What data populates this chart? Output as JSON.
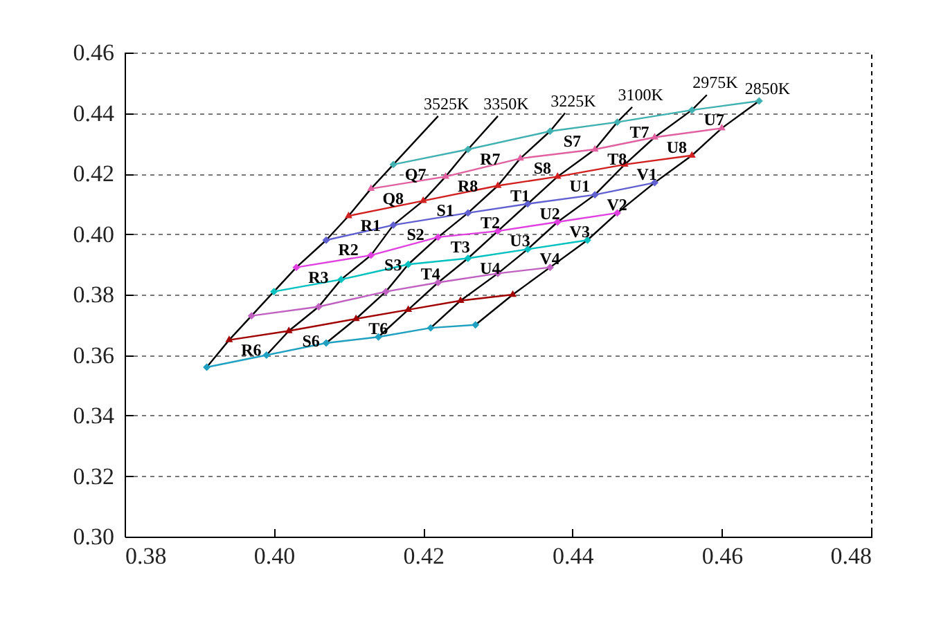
{
  "chart_data": {
    "type": "line",
    "xlim": [
      0.38,
      0.48
    ],
    "ylim": [
      0.3,
      0.46
    ],
    "xticks": [
      0.38,
      {
        "value": 0.4,
        "label": "0.40"
      },
      0.42,
      0.44,
      0.46,
      0.48
    ],
    "yticks": [
      {
        "value": 0.3,
        "label": "0.30"
      },
      0.32,
      0.34,
      0.36,
      0.38,
      {
        "value": 0.4,
        "label": "0.40"
      },
      0.42,
      0.44,
      0.46
    ],
    "grid": "y",
    "series": [
      {
        "name": "3525K",
        "color": "#000000",
        "marker": "none",
        "x": [
          0.391,
          0.394,
          0.397,
          0.4,
          0.403,
          0.407,
          0.41,
          0.413,
          0.416,
          0.422
        ],
        "values": [
          0.356,
          0.365,
          0.373,
          0.381,
          0.389,
          0.398,
          0.406,
          0.415,
          0.423,
          0.439
        ]
      },
      {
        "name": "3350K",
        "color": "#000000",
        "marker": "none",
        "x": [
          0.399,
          0.402,
          0.406,
          0.409,
          0.413,
          0.416,
          0.42,
          0.423,
          0.426,
          0.43
        ],
        "values": [
          0.36,
          0.368,
          0.376,
          0.385,
          0.393,
          0.403,
          0.411,
          0.419,
          0.428,
          0.439
        ]
      },
      {
        "name": "3225K",
        "color": "#000000",
        "marker": "none",
        "x": [
          0.407,
          0.411,
          0.415,
          0.418,
          0.422,
          0.426,
          0.43,
          0.433,
          0.437,
          0.439
        ],
        "values": [
          0.364,
          0.372,
          0.381,
          0.39,
          0.399,
          0.407,
          0.416,
          0.425,
          0.434,
          0.44
        ]
      },
      {
        "name": "3100K",
        "color": "#000000",
        "marker": "none",
        "x": [
          0.414,
          0.418,
          0.422,
          0.426,
          0.43,
          0.434,
          0.438,
          0.443,
          0.446,
          0.448
        ],
        "values": [
          0.366,
          0.375,
          0.384,
          0.392,
          0.401,
          0.41,
          0.419,
          0.428,
          0.437,
          0.442
        ]
      },
      {
        "name": "2975K",
        "color": "#000000",
        "marker": "none",
        "x": [
          0.421,
          0.425,
          0.43,
          0.434,
          0.438,
          0.443,
          0.447,
          0.451,
          0.456,
          0.458
        ],
        "values": [
          0.369,
          0.378,
          0.387,
          0.395,
          0.404,
          0.413,
          0.423,
          0.432,
          0.441,
          0.446
        ]
      },
      {
        "name": "2850K",
        "color": "#000000",
        "marker": "none",
        "x": [
          0.427,
          0.432,
          0.437,
          0.442,
          0.446,
          0.451,
          0.456,
          0.46,
          0.465
        ],
        "values": [
          0.37,
          0.38,
          0.389,
          0.398,
          0.407,
          0.417,
          0.426,
          0.435,
          0.444
        ]
      },
      {
        "color": "#20a0c0",
        "marker": "diamond",
        "x": [
          0.391,
          0.399,
          0.407,
          0.414,
          0.421,
          0.427
        ],
        "values": [
          0.356,
          0.36,
          0.364,
          0.366,
          0.369,
          0.37
        ]
      },
      {
        "color": "#a00000",
        "marker": "triangle",
        "x": [
          0.394,
          0.402,
          0.411,
          0.418,
          0.425,
          0.432
        ],
        "values": [
          0.365,
          0.368,
          0.372,
          0.375,
          0.378,
          0.38
        ]
      },
      {
        "color": "#c060c0",
        "marker": "diamond",
        "x": [
          0.397,
          0.406,
          0.415,
          0.422,
          0.43,
          0.437
        ],
        "values": [
          0.373,
          0.376,
          0.381,
          0.384,
          0.387,
          0.389
        ]
      },
      {
        "color": "#00c0c0",
        "marker": "diamond",
        "x": [
          0.4,
          0.409,
          0.418,
          0.426,
          0.434,
          0.442
        ],
        "values": [
          0.381,
          0.385,
          0.39,
          0.392,
          0.395,
          0.398
        ]
      },
      {
        "color": "#e040e0",
        "marker": "diamond",
        "x": [
          0.403,
          0.413,
          0.422,
          0.43,
          0.438,
          0.446
        ],
        "values": [
          0.389,
          0.393,
          0.399,
          0.401,
          0.404,
          0.407
        ]
      },
      {
        "color": "#6060d0",
        "marker": "diamond",
        "x": [
          0.407,
          0.416,
          0.426,
          0.434,
          0.443,
          0.451
        ],
        "values": [
          0.398,
          0.403,
          0.407,
          0.41,
          0.413,
          0.417
        ]
      },
      {
        "color": "#d02020",
        "marker": "triangle",
        "x": [
          0.41,
          0.42,
          0.43,
          0.438,
          0.447,
          0.456
        ],
        "values": [
          0.406,
          0.411,
          0.416,
          0.419,
          0.423,
          0.426
        ]
      },
      {
        "color": "#e060a0",
        "marker": "triangle",
        "x": [
          0.413,
          0.423,
          0.433,
          0.443,
          0.451,
          0.46
        ],
        "values": [
          0.415,
          0.419,
          0.425,
          0.428,
          0.432,
          0.435
        ]
      },
      {
        "color": "#40b0b0",
        "marker": "diamond",
        "x": [
          0.416,
          0.426,
          0.437,
          0.446,
          0.456,
          0.465
        ],
        "values": [
          0.423,
          0.428,
          0.434,
          0.437,
          0.441,
          0.444
        ]
      }
    ],
    "annotations": [
      {
        "text": "Q7",
        "x": 0.416,
        "y": 0.423
      },
      {
        "text": "Q8",
        "x": 0.413,
        "y": 0.415
      },
      {
        "text": "R1",
        "x": 0.41,
        "y": 0.406
      },
      {
        "text": "R2",
        "x": 0.407,
        "y": 0.398
      },
      {
        "text": "R3",
        "x": 0.403,
        "y": 0.389
      },
      {
        "text": "R6",
        "x": 0.394,
        "y": 0.365
      },
      {
        "text": "R7",
        "x": 0.426,
        "y": 0.428
      },
      {
        "text": "R8",
        "x": 0.423,
        "y": 0.419
      },
      {
        "text": "S1",
        "x": 0.42,
        "y": 0.411
      },
      {
        "text": "S2",
        "x": 0.416,
        "y": 0.403
      },
      {
        "text": "S3",
        "x": 0.413,
        "y": 0.393
      },
      {
        "text": "S6",
        "x": 0.402,
        "y": 0.368
      },
      {
        "text": "S7",
        "x": 0.437,
        "y": 0.434
      },
      {
        "text": "S8",
        "x": 0.433,
        "y": 0.425
      },
      {
        "text": "T1",
        "x": 0.43,
        "y": 0.416
      },
      {
        "text": "T2",
        "x": 0.426,
        "y": 0.407
      },
      {
        "text": "T3",
        "x": 0.422,
        "y": 0.399
      },
      {
        "text": "T4",
        "x": 0.418,
        "y": 0.39
      },
      {
        "text": "T6",
        "x": 0.411,
        "y": 0.372
      },
      {
        "text": "T7",
        "x": 0.446,
        "y": 0.437
      },
      {
        "text": "T8",
        "x": 0.443,
        "y": 0.428
      },
      {
        "text": "U1",
        "x": 0.438,
        "y": 0.419
      },
      {
        "text": "U2",
        "x": 0.434,
        "y": 0.41
      },
      {
        "text": "U3",
        "x": 0.43,
        "y": 0.401
      },
      {
        "text": "U4",
        "x": 0.426,
        "y": 0.392
      },
      {
        "text": "U7",
        "x": 0.456,
        "y": 0.441
      },
      {
        "text": "U8",
        "x": 0.451,
        "y": 0.432
      },
      {
        "text": "V1",
        "x": 0.447,
        "y": 0.423
      },
      {
        "text": "V2",
        "x": 0.443,
        "y": 0.413
      },
      {
        "text": "V3",
        "x": 0.438,
        "y": 0.404
      },
      {
        "text": "V4",
        "x": 0.434,
        "y": 0.395
      }
    ]
  }
}
